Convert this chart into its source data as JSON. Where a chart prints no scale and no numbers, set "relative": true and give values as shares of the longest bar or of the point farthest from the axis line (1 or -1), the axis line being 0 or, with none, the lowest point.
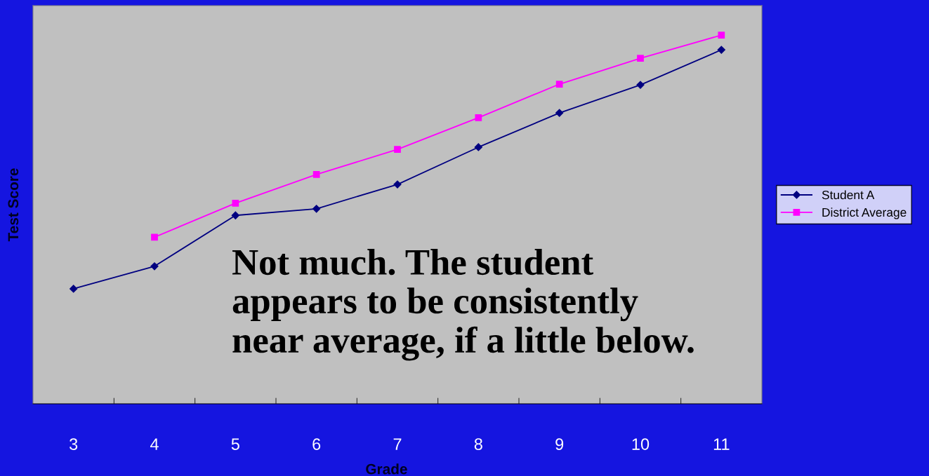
{
  "chart_data": {
    "type": "line",
    "xlabel": "Grade",
    "ylabel": "Test Score",
    "relative": true,
    "categories": [
      "3",
      "4",
      "5",
      "6",
      "7",
      "8",
      "9",
      "10",
      "11"
    ],
    "series": [
      {
        "name": "Student A",
        "color": "#000080",
        "marker": "diamond",
        "values": [
          0.312,
          0.373,
          0.511,
          0.529,
          0.595,
          0.696,
          0.789,
          0.865,
          0.96
        ]
      },
      {
        "name": "District Average",
        "color": "#ff00ff",
        "marker": "square",
        "values": [
          null,
          0.452,
          0.544,
          0.622,
          0.69,
          0.776,
          0.867,
          0.937,
          1.0
        ]
      }
    ],
    "annotations": [
      "Not much. The student\nappears to be consistently\nnear average, if a little below."
    ],
    "legend": "right",
    "grid": false
  }
}
